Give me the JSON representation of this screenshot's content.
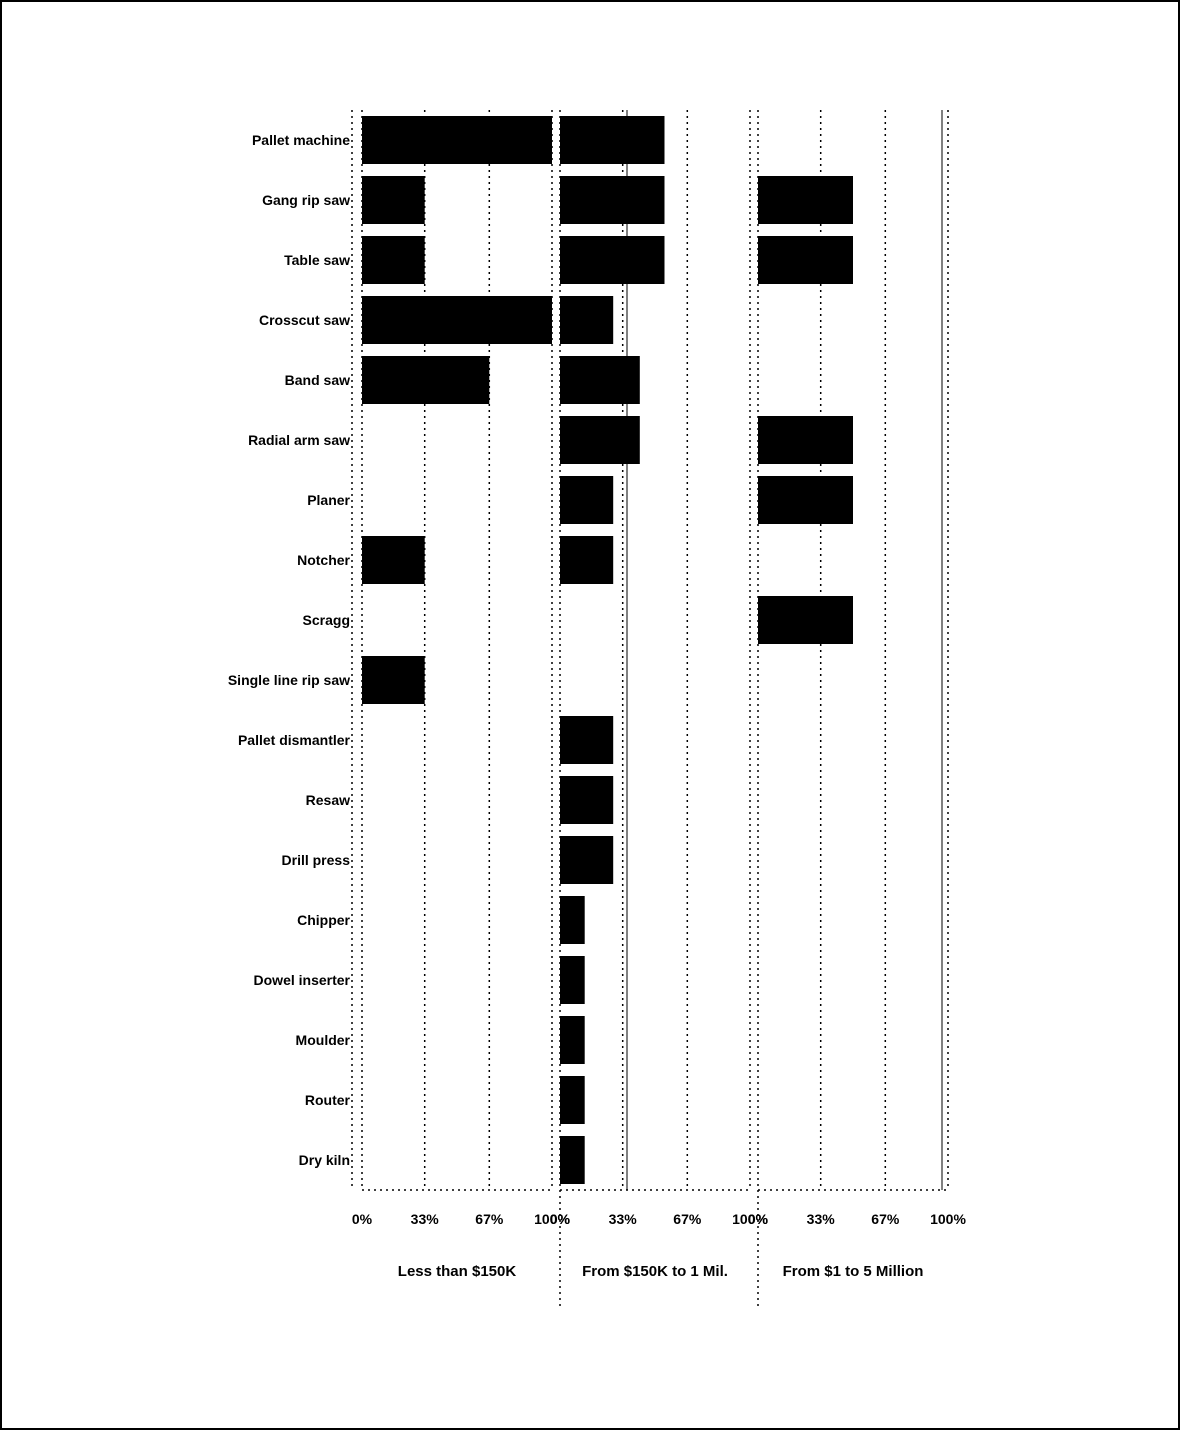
{
  "chart_data": {
    "type": "bar",
    "orientation": "horizontal",
    "title": "",
    "xlabel": "",
    "ylabel": "",
    "grid": true,
    "xlim": [
      0,
      100
    ],
    "categories": [
      "Pallet machine",
      "Gang rip saw",
      "Table saw",
      "Crosscut saw",
      "Band saw",
      "Radial arm saw",
      "Planer",
      "Notcher",
      "Scragg",
      "Single line rip saw",
      "Pallet dismantler",
      "Resaw",
      "Drill press",
      "Chipper",
      "Dowel inserter",
      "Moulder",
      "Router",
      "Dry kiln"
    ],
    "panels": [
      {
        "label": "Less than $150K",
        "tick_labels": [
          "0%",
          "33%",
          "67%",
          "100%"
        ],
        "values": [
          100,
          33,
          33,
          100,
          67,
          0,
          0,
          33,
          0,
          33,
          0,
          0,
          0,
          0,
          0,
          0,
          0,
          0
        ]
      },
      {
        "label": "From $150K to 1 Mil.",
        "tick_labels": [
          "0%",
          "33%",
          "67%",
          "100%"
        ],
        "values": [
          55,
          55,
          55,
          28,
          42,
          42,
          28,
          28,
          0,
          0,
          28,
          28,
          28,
          13,
          13,
          13,
          13,
          13
        ]
      },
      {
        "label": "From $1 to 5 Million",
        "tick_labels": [
          "0%",
          "33%",
          "67%",
          "100%"
        ],
        "values": [
          0,
          50,
          50,
          0,
          0,
          50,
          50,
          0,
          50,
          0,
          0,
          0,
          0,
          0,
          0,
          0,
          0,
          0
        ]
      }
    ],
    "colors": {
      "bar": "#000000",
      "grid": "#000000"
    }
  }
}
